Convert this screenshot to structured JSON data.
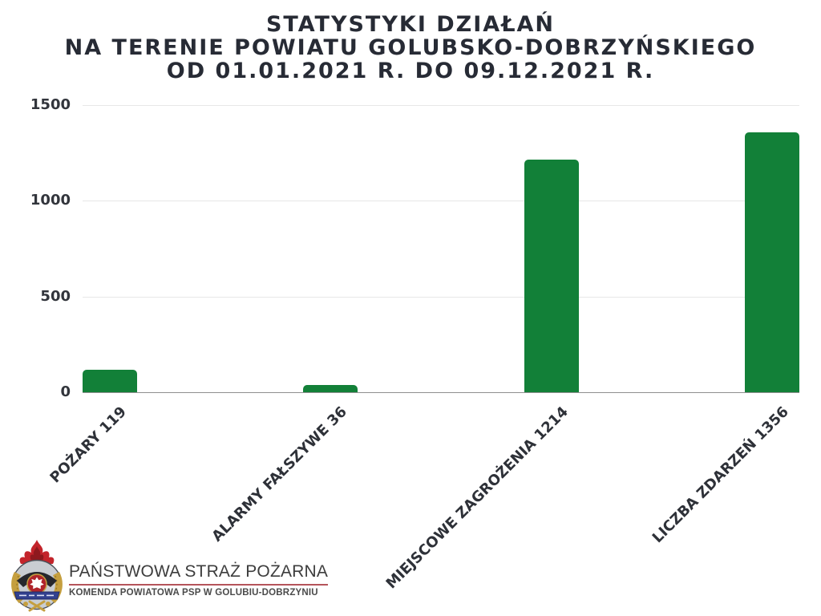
{
  "title": {
    "line1": "STATYSTYKI DZIAŁAŃ",
    "line2": "NA TERENIE POWIATU GOLUBSKO-DOBRZYŃSKIEGO",
    "line3": "OD 01.01.2021 R. DO 09.12.2021 R."
  },
  "chart_data": {
    "type": "bar",
    "title": "STATYSTYKI DZIAŁAŃ NA TERENIE POWIATU GOLUBSKO-DOBRZYŃSKIEGO OD 01.01.2021 R. DO 09.12.2021 R.",
    "categories": [
      "POŻARY 119",
      "ALARMY FAŁSZYWE 36",
      "MIEJSCOWE ZAGROŻENIA 1214",
      "LICZBA ZDARZEŃ 1356"
    ],
    "values": [
      119,
      36,
      1214,
      1356
    ],
    "xlabel": "",
    "ylabel": "",
    "ylim": [
      0,
      1500
    ],
    "yticks": [
      0,
      500,
      1000,
      1500
    ],
    "grid": true,
    "legend": false,
    "bar_color": "#128038",
    "x_label_rotation_deg": 45
  },
  "colors": {
    "bar_green": "#128038",
    "title_text": "#272b35",
    "axis_text": "#32353c",
    "gridline": "#e7e7e7",
    "axis_line": "#8f8f8f",
    "logo_underline_red": "#b5545b",
    "crest_flame_red": "#c3242b",
    "crest_band_blue": "#32418f",
    "crest_gold": "#c59f3f"
  },
  "footer": {
    "org_name": "PAŃSTWOWA STRAŻ POŻARNA",
    "unit_name": "KOMENDA POWIATOWA PSP W GOLUBIU-DOBRZYNIU"
  }
}
